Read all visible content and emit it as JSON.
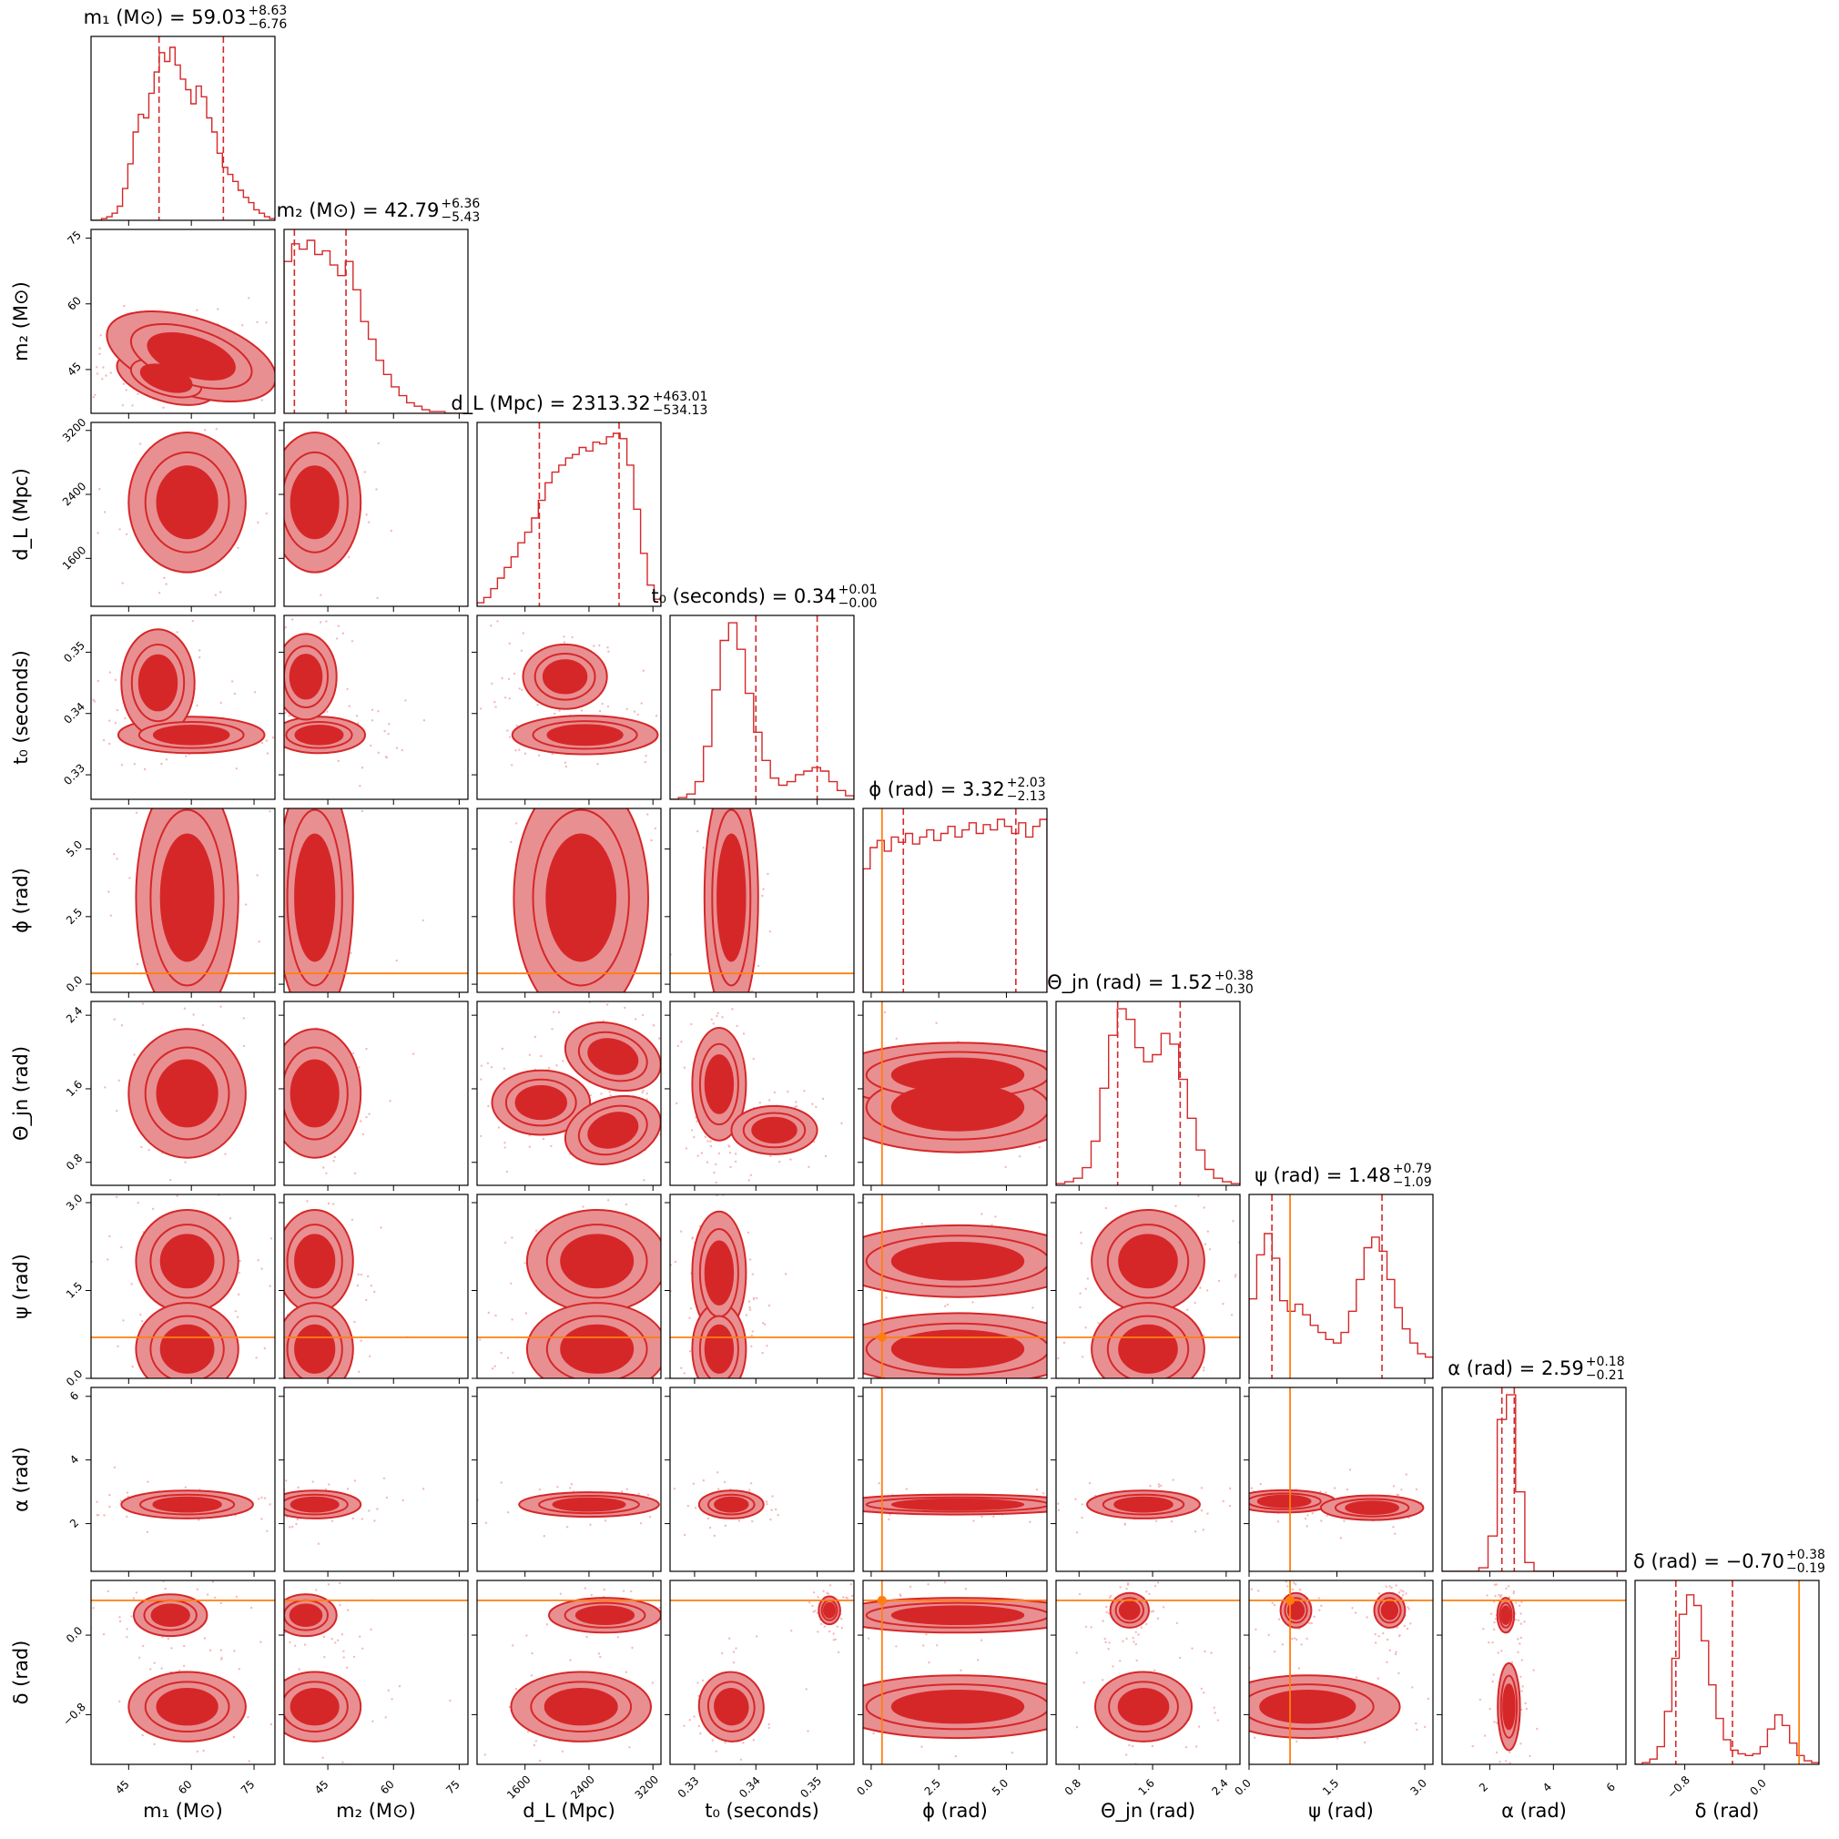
{
  "chart_data": {
    "type": "corner",
    "colors": {
      "hist": "#d62728",
      "contour_dark": "#d62728",
      "contour_light": "#e88f92",
      "scatter": "#f3b9bb",
      "truth": "#ff7f0e"
    },
    "parameters": [
      {
        "key": "m1",
        "label": "m₁ (M⊙)",
        "title": {
          "prefix": "m₁ (M⊙) = 59.03",
          "plus": "+8.63",
          "minus": "−6.76"
        },
        "median": 59.03,
        "plus": 8.63,
        "minus": 6.76,
        "range": [
          36,
          80
        ],
        "ticks": [
          45,
          60,
          75
        ],
        "tick_labels": [
          "45",
          "60",
          "75"
        ],
        "truth": null,
        "hist": [
          0,
          0,
          0.01,
          0.02,
          0.04,
          0.08,
          0.18,
          0.32,
          0.5,
          0.6,
          0.58,
          0.72,
          0.84,
          0.95,
          0.9,
          0.98,
          0.88,
          0.8,
          0.74,
          0.66,
          0.76,
          0.7,
          0.58,
          0.5,
          0.38,
          0.3,
          0.26,
          0.22,
          0.17,
          0.13,
          0.1,
          0.06,
          0.04,
          0.02,
          0.01
        ]
      },
      {
        "key": "m2",
        "label": "m₂ (M⊙)",
        "title": {
          "prefix": "m₂ (M⊙) = 42.79",
          "plus": "+6.36",
          "minus": "−5.43"
        },
        "median": 42.79,
        "plus": 6.36,
        "minus": 5.43,
        "range": [
          35,
          77
        ],
        "ticks": [
          45,
          60,
          75
        ],
        "tick_labels": [
          "45",
          "60",
          "75"
        ],
        "truth": null,
        "hist": [
          0.86,
          0.96,
          0.93,
          0.98,
          0.9,
          0.92,
          0.84,
          0.78,
          0.86,
          0.7,
          0.52,
          0.42,
          0.3,
          0.22,
          0.15,
          0.1,
          0.06,
          0.04,
          0.02,
          0.01,
          0.01,
          0,
          0,
          0
        ]
      },
      {
        "key": "dL",
        "label": "d_L (Mpc)",
        "title": {
          "prefix": "d_L (Mpc) = 2313.32",
          "plus": "+463.01",
          "minus": "−534.13"
        },
        "median": 2313.32,
        "plus": 463.01,
        "minus": 534.13,
        "range": [
          1000,
          3300
        ],
        "ticks": [
          1600,
          2400,
          3200
        ],
        "tick_labels": [
          "1600",
          "2400",
          "3200"
        ],
        "truth": null,
        "hist": [
          0.02,
          0.05,
          0.1,
          0.16,
          0.22,
          0.28,
          0.36,
          0.42,
          0.5,
          0.6,
          0.7,
          0.76,
          0.8,
          0.84,
          0.86,
          0.9,
          0.88,
          0.93,
          0.92,
          0.96,
          0.98,
          0.95,
          0.8,
          0.55,
          0.3,
          0.12,
          0.04
        ]
      },
      {
        "key": "t0",
        "label": "t₀ (seconds)",
        "title": {
          "prefix": "t₀ (seconds) = 0.34",
          "plus": "+0.01",
          "minus": "−0.00"
        },
        "median": 0.34,
        "plus": 0.01,
        "minus": 0.0,
        "range": [
          0.326,
          0.356
        ],
        "ticks": [
          0.33,
          0.34,
          0.35
        ],
        "tick_labels": [
          "0.33",
          "0.34",
          "0.35"
        ],
        "truth": null,
        "hist": [
          0,
          0.01,
          0.03,
          0.1,
          0.3,
          0.62,
          0.9,
          1,
          0.85,
          0.6,
          0.38,
          0.22,
          0.12,
          0.08,
          0.1,
          0.14,
          0.16,
          0.18,
          0.16,
          0.1,
          0.05,
          0.02
        ]
      },
      {
        "key": "phi",
        "label": "ϕ (rad)",
        "title": {
          "prefix": "ϕ (rad) = 3.32",
          "plus": "+2.03",
          "minus": "−2.13"
        },
        "median": 3.32,
        "plus": 2.03,
        "minus": 2.13,
        "range": [
          -0.3,
          6.5
        ],
        "ticks": [
          0.0,
          2.5,
          5.0
        ],
        "tick_labels": [
          "0.0",
          "2.5",
          "5.0"
        ],
        "truth": 0.4,
        "hist": [
          0.7,
          0.82,
          0.86,
          0.8,
          0.88,
          0.85,
          0.9,
          0.84,
          0.88,
          0.92,
          0.86,
          0.9,
          0.94,
          0.88,
          0.92,
          0.96,
          0.9,
          0.95,
          0.92,
          0.98,
          0.94,
          0.9,
          0.96,
          0.88,
          0.94,
          0.98
        ]
      },
      {
        "key": "thetajn",
        "label": "Θ_jn (rad)",
        "title": {
          "prefix": "Θ_jn (rad) = 1.52",
          "plus": "+0.38",
          "minus": "−0.30"
        },
        "median": 1.52,
        "plus": 0.38,
        "minus": 0.3,
        "range": [
          0.55,
          2.55
        ],
        "ticks": [
          0.8,
          1.6,
          2.4
        ],
        "tick_labels": [
          "0.8",
          "1.6",
          "2.4"
        ],
        "truth": null,
        "hist": [
          0.01,
          0.02,
          0.04,
          0.1,
          0.25,
          0.55,
          0.85,
          1,
          0.94,
          0.78,
          0.7,
          0.74,
          0.86,
          0.8,
          0.6,
          0.38,
          0.2,
          0.09,
          0.04,
          0.02,
          0.01
        ]
      },
      {
        "key": "psi",
        "label": "ψ (rad)",
        "title": {
          "prefix": "ψ (rad) = 1.48",
          "plus": "+0.79",
          "minus": "−1.09"
        },
        "median": 1.48,
        "plus": 0.79,
        "minus": 1.09,
        "range": [
          0.0,
          3.14
        ],
        "ticks": [
          0.0,
          1.5,
          3.0
        ],
        "tick_labels": [
          "0.0",
          "1.5",
          "3.0"
        ],
        "truth": 0.7,
        "hist": [
          0.45,
          0.7,
          0.82,
          0.68,
          0.44,
          0.38,
          0.42,
          0.36,
          0.3,
          0.26,
          0.22,
          0.2,
          0.26,
          0.38,
          0.56,
          0.74,
          0.8,
          0.72,
          0.56,
          0.4,
          0.28,
          0.2,
          0.14,
          0.12
        ]
      },
      {
        "key": "alpha",
        "label": "α (rad)",
        "title": {
          "prefix": "α (rad) = 2.59",
          "plus": "+0.18",
          "minus": "−0.21"
        },
        "median": 2.59,
        "plus": 0.18,
        "minus": 0.21,
        "range": [
          0.5,
          6.28
        ],
        "ticks": [
          2,
          4,
          6
        ],
        "tick_labels": [
          "2",
          "4",
          "6"
        ],
        "truth": null,
        "hist": [
          0,
          0,
          0,
          0,
          0.02,
          0.2,
          0.86,
          1,
          0.45,
          0.05,
          0,
          0,
          0,
          0,
          0,
          0,
          0,
          0,
          0,
          0
        ]
      },
      {
        "key": "delta",
        "label": "δ (rad)",
        "title": {
          "prefix": "δ (rad) = −0.70",
          "plus": "+0.38",
          "minus": "−0.19"
        },
        "median": -0.7,
        "plus": 0.38,
        "minus": 0.19,
        "range": [
          -1.3,
          0.55
        ],
        "ticks": [
          -0.8,
          0.0
        ],
        "tick_labels": [
          "−0.8",
          "0.0"
        ],
        "truth": 0.35,
        "hist": [
          0,
          0.01,
          0.03,
          0.1,
          0.3,
          0.6,
          0.85,
          0.96,
          0.9,
          0.7,
          0.45,
          0.26,
          0.14,
          0.08,
          0.06,
          0.05,
          0.06,
          0.1,
          0.2,
          0.28,
          0.22,
          0.12,
          0.05,
          0.02,
          0.01
        ]
      }
    ],
    "blobs": {
      "1,0": [
        [
          54,
          43,
          7,
          3,
          -0.5
        ],
        [
          60,
          48,
          12,
          5,
          -0.5
        ]
      ],
      "2,0": [
        [
          59,
          2300,
          8,
          500,
          0
        ]
      ],
      "2,1": [
        [
          42,
          2300,
          6,
          500,
          0
        ]
      ],
      "2,0_light": [
        [
          59,
          2300,
          11,
          650,
          0
        ]
      ],
      "3,0": [
        [
          60,
          0.3365,
          10,
          0.0017,
          0
        ],
        [
          52,
          0.345,
          5,
          0.005,
          0
        ]
      ],
      "3,1": [
        [
          43,
          0.3365,
          6,
          0.0017,
          0
        ],
        [
          40,
          0.346,
          4,
          0.004,
          0
        ]
      ],
      "3,2": [
        [
          2350,
          0.3365,
          520,
          0.0018,
          0
        ],
        [
          2100,
          0.346,
          300,
          0.003,
          0
        ]
      ],
      "4,0": [
        [
          59,
          3.2,
          7,
          2.6,
          0
        ]
      ],
      "4,1": [
        [
          42,
          3.2,
          5,
          2.6,
          0
        ]
      ],
      "4,2": [
        [
          2300,
          3.2,
          480,
          2.6,
          0
        ]
      ],
      "4,3": [
        [
          0.336,
          3.2,
          0.0025,
          2.6,
          0
        ]
      ],
      "5,0": [
        [
          59,
          1.55,
          8,
          0.4,
          0
        ]
      ],
      "5,1": [
        [
          42,
          1.55,
          6,
          0.4,
          0
        ]
      ],
      "5,2": [
        [
          1800,
          1.45,
          350,
          0.2,
          0
        ],
        [
          2700,
          1.95,
          350,
          0.2,
          -0.5
        ],
        [
          2700,
          1.15,
          350,
          0.2,
          0.5
        ]
      ],
      "5,3": [
        [
          0.334,
          1.65,
          0.0025,
          0.35,
          0
        ],
        [
          0.343,
          1.15,
          0.004,
          0.15,
          0
        ]
      ],
      "5,4": [
        [
          3.2,
          1.4,
          2.7,
          0.28,
          0
        ],
        [
          3.2,
          1.75,
          2.7,
          0.2,
          0
        ]
      ],
      "6,0": [
        [
          59,
          2.0,
          7,
          0.5,
          0
        ],
        [
          59,
          0.5,
          7,
          0.45,
          0
        ]
      ],
      "6,1": [
        [
          42,
          2.0,
          5,
          0.5,
          0
        ],
        [
          42,
          0.5,
          5,
          0.45,
          0
        ]
      ],
      "6,2": [
        [
          2500,
          2.0,
          500,
          0.5,
          0
        ],
        [
          2500,
          0.5,
          500,
          0.45,
          0
        ]
      ],
      "6,3": [
        [
          0.334,
          1.8,
          0.0025,
          0.6,
          0
        ],
        [
          0.334,
          0.5,
          0.0025,
          0.45,
          0
        ]
      ],
      "6,4": [
        [
          3.2,
          2.0,
          2.7,
          0.35,
          0
        ],
        [
          3.2,
          0.5,
          2.7,
          0.35,
          0
        ]
      ],
      "6,5": [
        [
          1.55,
          2.0,
          0.35,
          0.5,
          0
        ],
        [
          1.55,
          0.5,
          0.35,
          0.45,
          0
        ]
      ],
      "7,0": [
        [
          59,
          2.6,
          9,
          0.25,
          0
        ]
      ],
      "7,1": [
        [
          42,
          2.6,
          6,
          0.25,
          0
        ]
      ],
      "7,2": [
        [
          2400,
          2.6,
          500,
          0.22,
          0
        ]
      ],
      "7,3": [
        [
          0.336,
          2.6,
          0.003,
          0.25,
          0
        ]
      ],
      "7,4": [
        [
          3.2,
          2.6,
          2.7,
          0.18,
          0
        ]
      ],
      "7,5": [
        [
          1.5,
          2.6,
          0.35,
          0.25,
          0
        ]
      ],
      "7,6": [
        [
          0.6,
          2.7,
          0.5,
          0.2,
          0
        ],
        [
          2.1,
          2.5,
          0.5,
          0.22,
          0
        ]
      ],
      "8,0": [
        [
          59,
          -0.72,
          8,
          0.2,
          0
        ],
        [
          55,
          0.2,
          5,
          0.12,
          0
        ]
      ],
      "8,1": [
        [
          42,
          -0.72,
          6,
          0.2,
          0
        ],
        [
          40,
          0.2,
          4,
          0.12,
          0
        ]
      ],
      "8,2": [
        [
          2300,
          -0.72,
          500,
          0.2,
          0
        ],
        [
          2600,
          0.2,
          400,
          0.1,
          0
        ]
      ],
      "8,3": [
        [
          0.336,
          -0.72,
          0.003,
          0.2,
          0.3
        ],
        [
          0.352,
          0.25,
          0.001,
          0.08,
          0
        ]
      ],
      "8,4": [
        [
          3.2,
          -0.72,
          2.7,
          0.18,
          0
        ],
        [
          3.2,
          0.2,
          2.7,
          0.1,
          0
        ]
      ],
      "8,5": [
        [
          1.5,
          -0.72,
          0.3,
          0.2,
          0
        ],
        [
          1.35,
          0.25,
          0.12,
          0.1,
          0
        ]
      ],
      "8,6": [
        [
          1.0,
          -0.72,
          0.9,
          0.18,
          0
        ],
        [
          0.8,
          0.25,
          0.15,
          0.1,
          0
        ],
        [
          2.4,
          0.25,
          0.15,
          0.1,
          0
        ]
      ],
      "8,7": [
        [
          2.6,
          -0.72,
          0.2,
          0.25,
          0
        ],
        [
          2.5,
          0.2,
          0.15,
          0.1,
          0
        ]
      ]
    }
  }
}
